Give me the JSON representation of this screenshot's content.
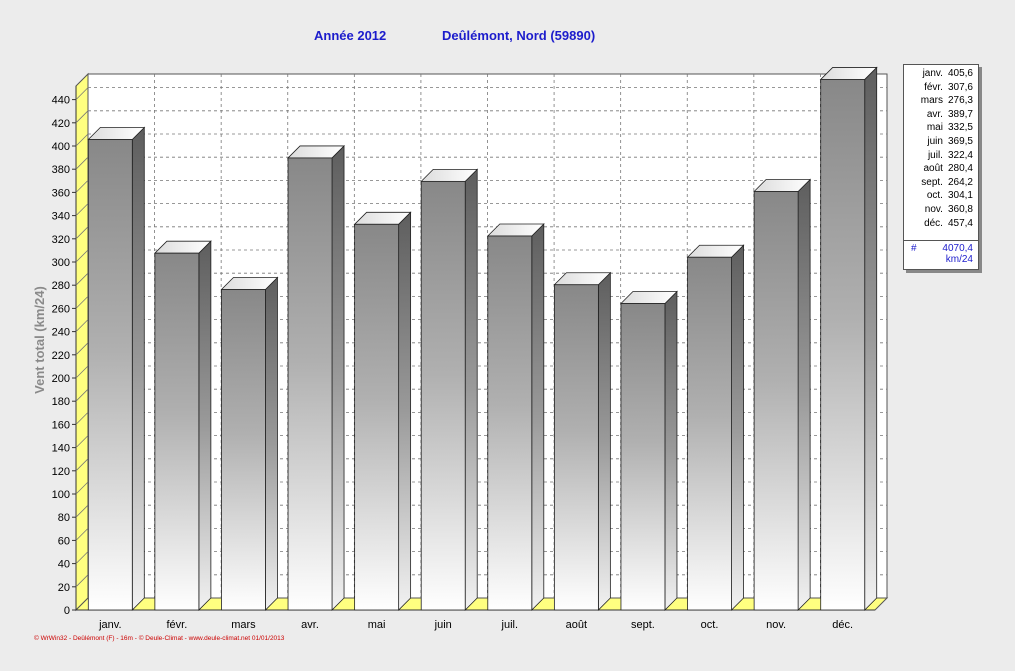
{
  "title": {
    "year": "Année  2012",
    "location": "Deûlémont, Nord (59890)"
  },
  "chart_data": {
    "type": "bar",
    "categories": [
      "janv.",
      "févr.",
      "mars",
      "avr.",
      "mai",
      "juin",
      "juil.",
      "août",
      "sept.",
      "oct.",
      "nov.",
      "déc."
    ],
    "values": [
      405.6,
      307.6,
      276.3,
      389.7,
      332.5,
      369.5,
      322.4,
      280.4,
      264.2,
      304.1,
      360.8,
      457.4
    ],
    "ylabel": "Vent total  (km/24)",
    "ylim": [
      0,
      450
    ],
    "yticks": [
      0,
      20,
      40,
      60,
      80,
      100,
      120,
      140,
      160,
      180,
      200,
      220,
      240,
      260,
      280,
      300,
      320,
      340,
      360,
      380,
      400,
      420,
      440
    ],
    "grid": true,
    "legend_position": "right"
  },
  "legend": {
    "rows": [
      {
        "month": "janv.",
        "value": "405,6"
      },
      {
        "month": "févr.",
        "value": "307,6"
      },
      {
        "month": "mars",
        "value": "276,3"
      },
      {
        "month": "avr.",
        "value": "389,7"
      },
      {
        "month": "mai",
        "value": "332,5"
      },
      {
        "month": "juin",
        "value": "369,5"
      },
      {
        "month": "juil.",
        "value": "322,4"
      },
      {
        "month": "août",
        "value": "280,4"
      },
      {
        "month": "sept.",
        "value": "264,2"
      },
      {
        "month": "oct.",
        "value": "304,1"
      },
      {
        "month": "nov.",
        "value": "360,8"
      },
      {
        "month": "déc.",
        "value": "457,4"
      }
    ],
    "total_symbol": "#",
    "total_value": "4070,4",
    "total_unit": "km/24"
  },
  "footer": "© WrWin32 - Deûlémont (F) - 16m - © Deule-Climat - www.deule-climat.net  01/01/2013",
  "colors": {
    "title": "#1c1ccc",
    "floor": "#ffff80",
    "footer": "#cc0000"
  }
}
